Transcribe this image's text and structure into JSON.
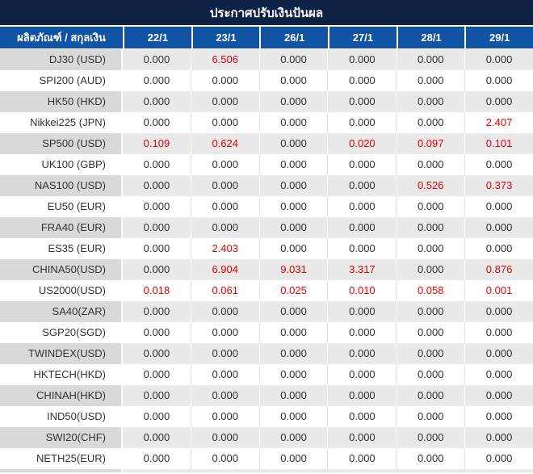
{
  "title": "ประกาศปรับเงินปันผล",
  "table": {
    "product_column_header": "ผลิตภัณฑ์ / สกุลเงิน",
    "date_columns": [
      "22/1",
      "23/1",
      "26/1",
      "27/1",
      "28/1",
      "29/1"
    ],
    "rows": [
      {
        "product": "DJ30 (USD)",
        "values": [
          "0.000",
          "6.506",
          "0.000",
          "0.000",
          "0.000",
          "0.000"
        ],
        "red": [
          false,
          true,
          false,
          false,
          false,
          false
        ]
      },
      {
        "product": "SPI200 (AUD)",
        "values": [
          "0.000",
          "0.000",
          "0.000",
          "0.000",
          "0.000",
          "0.000"
        ],
        "red": [
          false,
          false,
          false,
          false,
          false,
          false
        ]
      },
      {
        "product": "HK50 (HKD)",
        "values": [
          "0.000",
          "0.000",
          "0.000",
          "0.000",
          "0.000",
          "0.000"
        ],
        "red": [
          false,
          false,
          false,
          false,
          false,
          false
        ]
      },
      {
        "product": "Nikkei225 (JPN)",
        "values": [
          "0.000",
          "0.000",
          "0.000",
          "0.000",
          "0.000",
          "2.407"
        ],
        "red": [
          false,
          false,
          false,
          false,
          false,
          true
        ]
      },
      {
        "product": "SP500 (USD)",
        "values": [
          "0.109",
          "0.624",
          "0.000",
          "0.020",
          "0.097",
          "0.101"
        ],
        "red": [
          true,
          true,
          false,
          true,
          true,
          true
        ]
      },
      {
        "product": "UK100 (GBP)",
        "values": [
          "0.000",
          "0.000",
          "0.000",
          "0.000",
          "0.000",
          "0.000"
        ],
        "red": [
          false,
          false,
          false,
          false,
          false,
          false
        ]
      },
      {
        "product": "NAS100 (USD)",
        "values": [
          "0.000",
          "0.000",
          "0.000",
          "0.000",
          "0.526",
          "0.373"
        ],
        "red": [
          false,
          false,
          false,
          false,
          true,
          true
        ]
      },
      {
        "product": "EU50 (EUR)",
        "values": [
          "0.000",
          "0.000",
          "0.000",
          "0.000",
          "0.000",
          "0.000"
        ],
        "red": [
          false,
          false,
          false,
          false,
          false,
          false
        ]
      },
      {
        "product": "FRA40 (EUR)",
        "values": [
          "0.000",
          "0.000",
          "0.000",
          "0.000",
          "0.000",
          "0.000"
        ],
        "red": [
          false,
          false,
          false,
          false,
          false,
          false
        ]
      },
      {
        "product": "ES35 (EUR)",
        "values": [
          "0.000",
          "2.403",
          "0.000",
          "0.000",
          "0.000",
          "0.000"
        ],
        "red": [
          false,
          true,
          false,
          false,
          false,
          false
        ]
      },
      {
        "product": "CHINA50(USD)",
        "values": [
          "0.000",
          "6.904",
          "9.031",
          "3.317",
          "0.000",
          "0.876"
        ],
        "red": [
          false,
          true,
          true,
          true,
          false,
          true
        ]
      },
      {
        "product": "US2000(USD)",
        "values": [
          "0.018",
          "0.061",
          "0.025",
          "0.010",
          "0.058",
          "0.001"
        ],
        "red": [
          true,
          true,
          true,
          true,
          true,
          true
        ]
      },
      {
        "product": "SA40(ZAR)",
        "values": [
          "0.000",
          "0.000",
          "0.000",
          "0.000",
          "0.000",
          "0.000"
        ],
        "red": [
          false,
          false,
          false,
          false,
          false,
          false
        ]
      },
      {
        "product": "SGP20(SGD)",
        "values": [
          "0.000",
          "0.000",
          "0.000",
          "0.000",
          "0.000",
          "0.000"
        ],
        "red": [
          false,
          false,
          false,
          false,
          false,
          false
        ]
      },
      {
        "product": "TWINDEX(USD)",
        "values": [
          "0.000",
          "0.000",
          "0.000",
          "0.000",
          "0.000",
          "0.000"
        ],
        "red": [
          false,
          false,
          false,
          false,
          false,
          false
        ]
      },
      {
        "product": "HKTECH(HKD)",
        "values": [
          "0.000",
          "0.000",
          "0.000",
          "0.000",
          "0.000",
          "0.000"
        ],
        "red": [
          false,
          false,
          false,
          false,
          false,
          false
        ]
      },
      {
        "product": "CHINAH(HKD)",
        "values": [
          "0.000",
          "0.000",
          "0.000",
          "0.000",
          "0.000",
          "0.000"
        ],
        "red": [
          false,
          false,
          false,
          false,
          false,
          false
        ]
      },
      {
        "product": "IND50(USD)",
        "values": [
          "0.000",
          "0.000",
          "0.000",
          "0.000",
          "0.000",
          "0.000"
        ],
        "red": [
          false,
          false,
          false,
          false,
          false,
          false
        ]
      },
      {
        "product": "SWI20(CHF)",
        "values": [
          "0.000",
          "0.000",
          "0.000",
          "0.000",
          "0.000",
          "0.000"
        ],
        "red": [
          false,
          false,
          false,
          false,
          false,
          false
        ]
      },
      {
        "product": "NETH25(EUR)",
        "values": [
          "0.000",
          "0.000",
          "0.000",
          "0.000",
          "0.000",
          "0.000"
        ],
        "red": [
          false,
          false,
          false,
          false,
          false,
          false
        ]
      }
    ]
  },
  "colors": {
    "title_bar": "#0d2244",
    "header_blue": "#1254a4",
    "highlight_red": "#e60000",
    "row_gray": "#e9e9e9",
    "product_gray": "#d9d9d9",
    "text": "#303030"
  }
}
